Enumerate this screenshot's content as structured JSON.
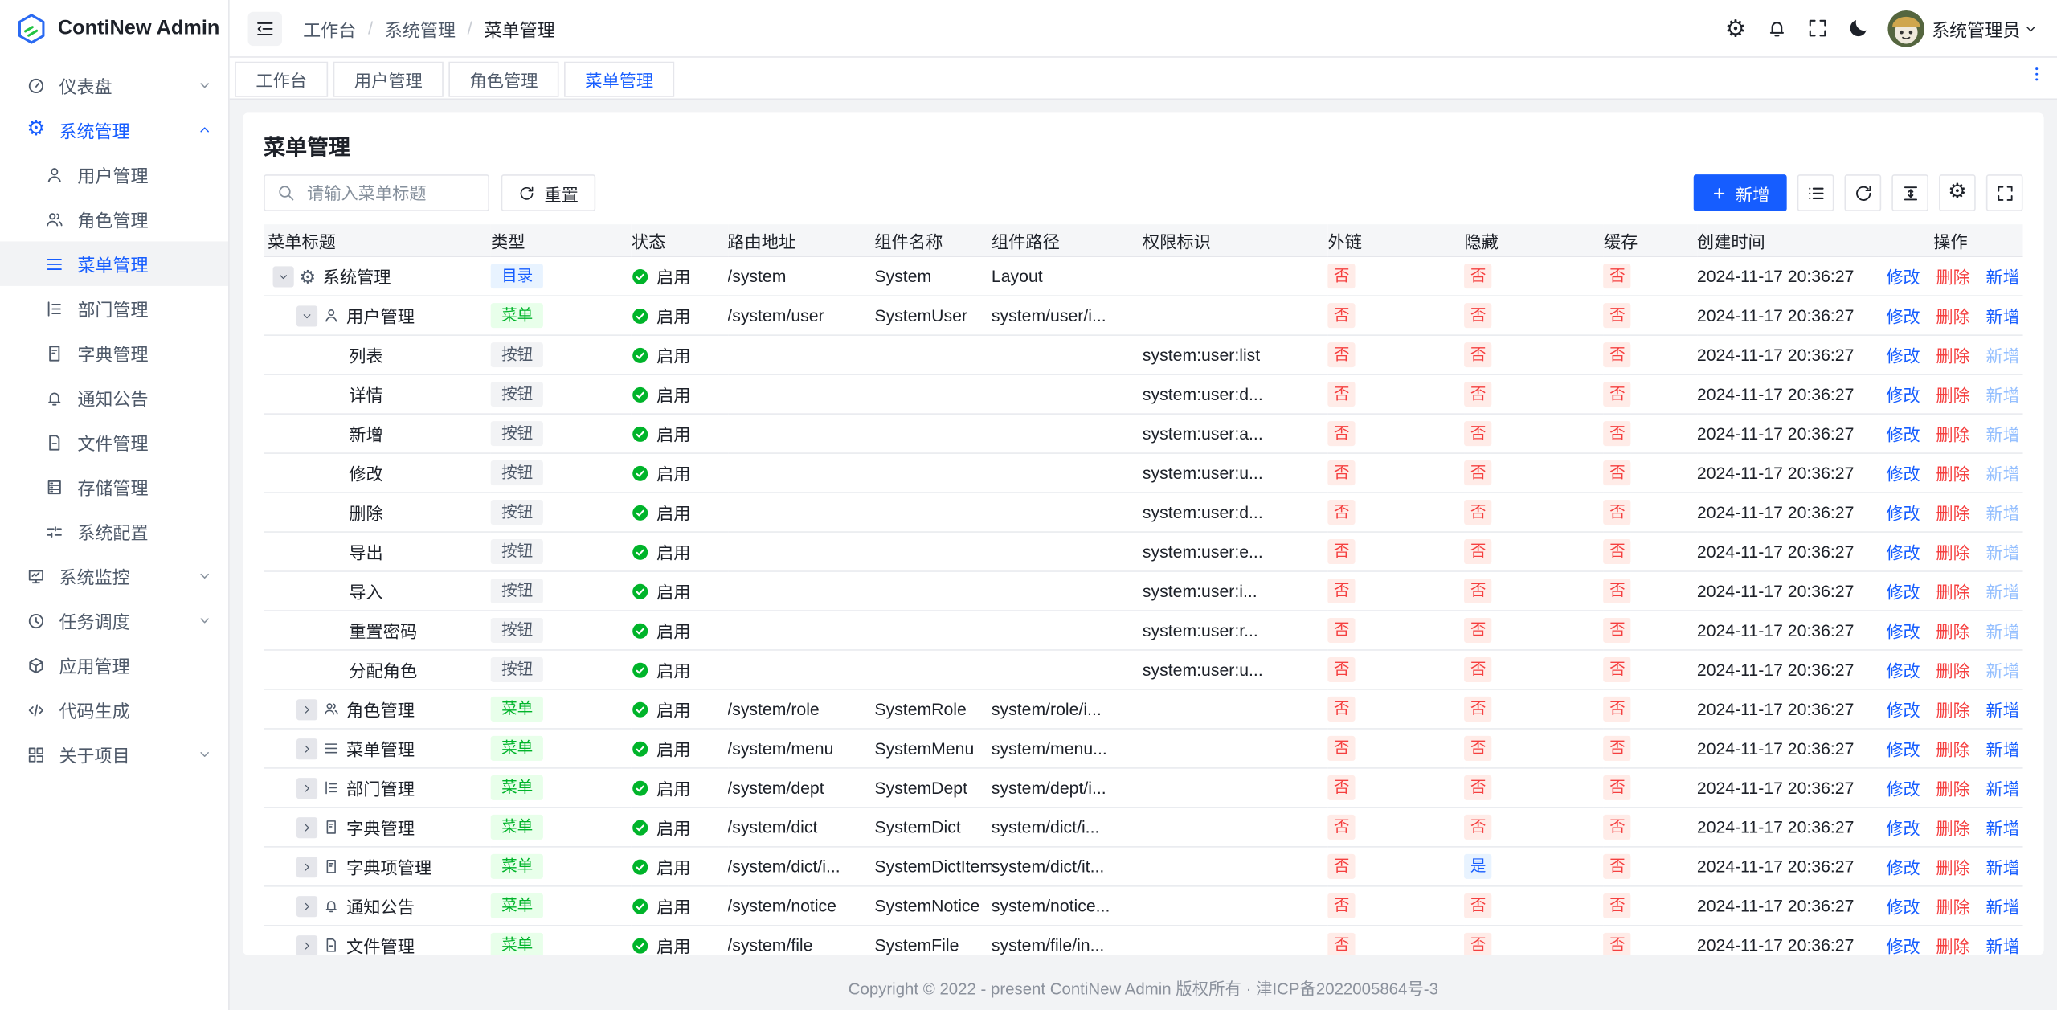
{
  "sidebar": {
    "logo_text": "ContiNew Admin",
    "items": [
      {
        "key": "dashboard",
        "label": "仪表盘",
        "icon": "dashboard-icon",
        "chevron": "down"
      },
      {
        "key": "system",
        "label": "系统管理",
        "icon": "gear-icon",
        "chevron": "up",
        "active": true,
        "children": [
          {
            "key": "user",
            "label": "用户管理",
            "icon": "user-icon"
          },
          {
            "key": "role",
            "label": "角色管理",
            "icon": "users-icon"
          },
          {
            "key": "menu",
            "label": "菜单管理",
            "icon": "menu-icon",
            "selected": true
          },
          {
            "key": "dept",
            "label": "部门管理",
            "icon": "tree-icon"
          },
          {
            "key": "dict",
            "label": "字典管理",
            "icon": "book-icon"
          },
          {
            "key": "notice",
            "label": "通知公告",
            "icon": "bell-icon"
          },
          {
            "key": "file",
            "label": "文件管理",
            "icon": "file-icon"
          },
          {
            "key": "storage",
            "label": "存储管理",
            "icon": "storage-icon"
          },
          {
            "key": "config",
            "label": "系统配置",
            "icon": "sliders-icon"
          }
        ]
      },
      {
        "key": "monitor",
        "label": "系统监控",
        "icon": "monitor-icon",
        "chevron": "down"
      },
      {
        "key": "schedule",
        "label": "任务调度",
        "icon": "clock-icon",
        "chevron": "down"
      },
      {
        "key": "app",
        "label": "应用管理",
        "icon": "cube-icon"
      },
      {
        "key": "codegen",
        "label": "代码生成",
        "icon": "code-icon"
      },
      {
        "key": "about",
        "label": "关于项目",
        "icon": "grid-icon",
        "chevron": "down"
      }
    ]
  },
  "header": {
    "breadcrumb": [
      "工作台",
      "系统管理",
      "菜单管理"
    ],
    "separator": "/",
    "action_icons": [
      "settings-icon",
      "notification-icon",
      "fullscreen-icon",
      "dark-mode-icon"
    ],
    "user_name": "系统管理员"
  },
  "tabs": {
    "items": [
      "工作台",
      "用户管理",
      "角色管理",
      "菜单管理"
    ],
    "active_index": 3
  },
  "page": {
    "title": "菜单管理",
    "search_placeholder": "请输入菜单标题",
    "reset_label": "重置",
    "add_label": "新增",
    "toolbar_icons": [
      "list-icon",
      "refresh-icon",
      "line-height-icon",
      "settings-icon",
      "fullscreen-icon"
    ]
  },
  "table": {
    "columns": [
      "菜单标题",
      "类型",
      "状态",
      "路由地址",
      "组件名称",
      "组件路径",
      "权限标识",
      "外链",
      "隐藏",
      "缓存",
      "创建时间",
      "操作"
    ],
    "action_labels": {
      "modify": "修改",
      "remove": "删除",
      "add": "新增"
    },
    "status_enabled": "启用",
    "rows": [
      {
        "level": 0,
        "expand": "open",
        "icon": "gear-icon",
        "title": "系统管理",
        "type": "目录",
        "type_variant": "blue",
        "status": "启用",
        "route": "/system",
        "component": "System",
        "path": "Layout",
        "permission": "",
        "external": "否",
        "hidden": "否",
        "cache": "否",
        "created": "2024-11-17 20:36:27",
        "add_disabled": false
      },
      {
        "level": 1,
        "expand": "open",
        "icon": "user-icon",
        "title": "用户管理",
        "type": "菜单",
        "type_variant": "green",
        "status": "启用",
        "route": "/system/user",
        "component": "SystemUser",
        "path": "system/user/i...",
        "permission": "",
        "external": "否",
        "hidden": "否",
        "cache": "否",
        "created": "2024-11-17 20:36:27",
        "add_disabled": false
      },
      {
        "level": 2,
        "expand": "none",
        "icon": null,
        "title": "列表",
        "type": "按钮",
        "type_variant": "gray",
        "status": "启用",
        "route": "",
        "component": "",
        "path": "",
        "permission": "system:user:list",
        "external": "否",
        "hidden": "否",
        "cache": "否",
        "created": "2024-11-17 20:36:27",
        "add_disabled": true
      },
      {
        "level": 2,
        "expand": "none",
        "icon": null,
        "title": "详情",
        "type": "按钮",
        "type_variant": "gray",
        "status": "启用",
        "route": "",
        "component": "",
        "path": "",
        "permission": "system:user:d...",
        "external": "否",
        "hidden": "否",
        "cache": "否",
        "created": "2024-11-17 20:36:27",
        "add_disabled": true
      },
      {
        "level": 2,
        "expand": "none",
        "icon": null,
        "title": "新增",
        "type": "按钮",
        "type_variant": "gray",
        "status": "启用",
        "route": "",
        "component": "",
        "path": "",
        "permission": "system:user:a...",
        "external": "否",
        "hidden": "否",
        "cache": "否",
        "created": "2024-11-17 20:36:27",
        "add_disabled": true
      },
      {
        "level": 2,
        "expand": "none",
        "icon": null,
        "title": "修改",
        "type": "按钮",
        "type_variant": "gray",
        "status": "启用",
        "route": "",
        "component": "",
        "path": "",
        "permission": "system:user:u...",
        "external": "否",
        "hidden": "否",
        "cache": "否",
        "created": "2024-11-17 20:36:27",
        "add_disabled": true
      },
      {
        "level": 2,
        "expand": "none",
        "icon": null,
        "title": "删除",
        "type": "按钮",
        "type_variant": "gray",
        "status": "启用",
        "route": "",
        "component": "",
        "path": "",
        "permission": "system:user:d...",
        "external": "否",
        "hidden": "否",
        "cache": "否",
        "created": "2024-11-17 20:36:27",
        "add_disabled": true
      },
      {
        "level": 2,
        "expand": "none",
        "icon": null,
        "title": "导出",
        "type": "按钮",
        "type_variant": "gray",
        "status": "启用",
        "route": "",
        "component": "",
        "path": "",
        "permission": "system:user:e...",
        "external": "否",
        "hidden": "否",
        "cache": "否",
        "created": "2024-11-17 20:36:27",
        "add_disabled": true
      },
      {
        "level": 2,
        "expand": "none",
        "icon": null,
        "title": "导入",
        "type": "按钮",
        "type_variant": "gray",
        "status": "启用",
        "route": "",
        "component": "",
        "path": "",
        "permission": "system:user:i...",
        "external": "否",
        "hidden": "否",
        "cache": "否",
        "created": "2024-11-17 20:36:27",
        "add_disabled": true
      },
      {
        "level": 2,
        "expand": "none",
        "icon": null,
        "title": "重置密码",
        "type": "按钮",
        "type_variant": "gray",
        "status": "启用",
        "route": "",
        "component": "",
        "path": "",
        "permission": "system:user:r...",
        "external": "否",
        "hidden": "否",
        "cache": "否",
        "created": "2024-11-17 20:36:27",
        "add_disabled": true
      },
      {
        "level": 2,
        "expand": "none",
        "icon": null,
        "title": "分配角色",
        "type": "按钮",
        "type_variant": "gray",
        "status": "启用",
        "route": "",
        "component": "",
        "path": "",
        "permission": "system:user:u...",
        "external": "否",
        "hidden": "否",
        "cache": "否",
        "created": "2024-11-17 20:36:27",
        "add_disabled": true
      },
      {
        "level": 1,
        "expand": "closed",
        "icon": "users-icon",
        "title": "角色管理",
        "type": "菜单",
        "type_variant": "green",
        "status": "启用",
        "route": "/system/role",
        "component": "SystemRole",
        "path": "system/role/i...",
        "permission": "",
        "external": "否",
        "hidden": "否",
        "cache": "否",
        "created": "2024-11-17 20:36:27",
        "add_disabled": false
      },
      {
        "level": 1,
        "expand": "closed",
        "icon": "menu-icon",
        "title": "菜单管理",
        "type": "菜单",
        "type_variant": "green",
        "status": "启用",
        "route": "/system/menu",
        "component": "SystemMenu",
        "path": "system/menu...",
        "permission": "",
        "external": "否",
        "hidden": "否",
        "cache": "否",
        "created": "2024-11-17 20:36:27",
        "add_disabled": false
      },
      {
        "level": 1,
        "expand": "closed",
        "icon": "tree-icon",
        "title": "部门管理",
        "type": "菜单",
        "type_variant": "green",
        "status": "启用",
        "route": "/system/dept",
        "component": "SystemDept",
        "path": "system/dept/i...",
        "permission": "",
        "external": "否",
        "hidden": "否",
        "cache": "否",
        "created": "2024-11-17 20:36:27",
        "add_disabled": false
      },
      {
        "level": 1,
        "expand": "closed",
        "icon": "book-icon",
        "title": "字典管理",
        "type": "菜单",
        "type_variant": "green",
        "status": "启用",
        "route": "/system/dict",
        "component": "SystemDict",
        "path": "system/dict/i...",
        "permission": "",
        "external": "否",
        "hidden": "否",
        "cache": "否",
        "created": "2024-11-17 20:36:27",
        "add_disabled": false
      },
      {
        "level": 1,
        "expand": "closed",
        "icon": "book-icon",
        "title": "字典项管理",
        "type": "菜单",
        "type_variant": "green",
        "status": "启用",
        "route": "/system/dict/i...",
        "component": "SystemDictItem",
        "path": "system/dict/it...",
        "permission": "",
        "external": "否",
        "hidden": "是",
        "cache": "否",
        "created": "2024-11-17 20:36:27",
        "add_disabled": false
      },
      {
        "level": 1,
        "expand": "closed",
        "icon": "bell-icon",
        "title": "通知公告",
        "type": "菜单",
        "type_variant": "green",
        "status": "启用",
        "route": "/system/notice",
        "component": "SystemNotice",
        "path": "system/notice...",
        "permission": "",
        "external": "否",
        "hidden": "否",
        "cache": "否",
        "created": "2024-11-17 20:36:27",
        "add_disabled": false
      },
      {
        "level": 1,
        "expand": "closed",
        "icon": "file-icon",
        "title": "文件管理",
        "type": "菜单",
        "type_variant": "green",
        "status": "启用",
        "route": "/system/file",
        "component": "SystemFile",
        "path": "system/file/in...",
        "permission": "",
        "external": "否",
        "hidden": "否",
        "cache": "否",
        "created": "2024-11-17 20:36:27",
        "add_disabled": false
      }
    ]
  },
  "footer": {
    "copyright": "Copyright © 2022 - present ContiNew Admin 版权所有 · 津ICP备2022005864号-3"
  },
  "colors": {
    "primary": "#165dff",
    "success": "#00b42a",
    "danger": "#f53f3f"
  }
}
